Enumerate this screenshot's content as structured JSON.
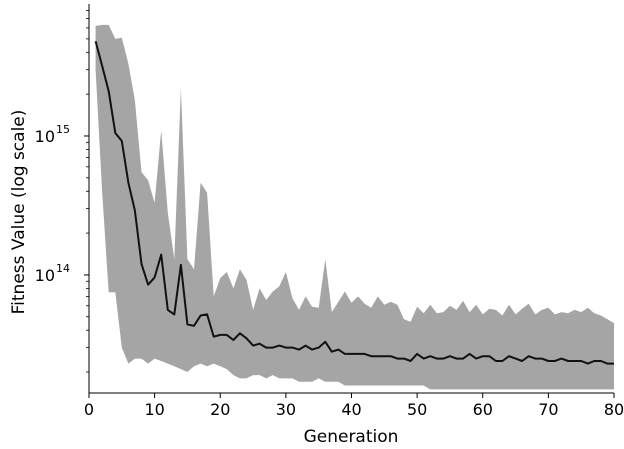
{
  "chart_data": {
    "type": "area",
    "xlabel": "Generation",
    "ylabel": "Fitness Value (log scale)",
    "xlim": [
      0,
      80
    ],
    "ylim_exponent": [
      13.15,
      15.95
    ],
    "yscale": "log",
    "xticks": [
      0,
      10,
      20,
      30,
      40,
      50,
      60,
      70,
      80
    ],
    "yticks": [
      {
        "base": "10",
        "exp": "14",
        "value": 100000000000000.0
      },
      {
        "base": "10",
        "exp": "15",
        "value": 1000000000000000.0
      }
    ],
    "grid": false,
    "colors": {
      "line": "#111111",
      "band": "#a5a5a5",
      "axis": "#000000"
    },
    "x": [
      1,
      2,
      3,
      4,
      5,
      6,
      7,
      8,
      9,
      10,
      11,
      12,
      13,
      14,
      15,
      16,
      17,
      18,
      19,
      20,
      21,
      22,
      23,
      24,
      25,
      26,
      27,
      28,
      29,
      30,
      31,
      32,
      33,
      34,
      35,
      36,
      37,
      38,
      39,
      40,
      41,
      42,
      43,
      44,
      45,
      46,
      47,
      48,
      49,
      50,
      51,
      52,
      53,
      54,
      55,
      56,
      57,
      58,
      59,
      60,
      61,
      62,
      63,
      64,
      65,
      66,
      67,
      68,
      69,
      70,
      71,
      72,
      73,
      74,
      75,
      76,
      77,
      78,
      79,
      80
    ],
    "series": [
      {
        "role": "mean",
        "values": [
          4800000000000000.0,
          3200000000000000.0,
          2100000000000000.0,
          1050000000000000.0,
          920000000000000.0,
          460000000000000.0,
          290000000000000.0,
          120000000000000.0,
          85000000000000.0,
          96000000000000.0,
          140000000000000.0,
          56000000000000.0,
          52000000000000.0,
          118000000000000.0,
          44000000000000.0,
          43000000000000.0,
          51000000000000.0,
          52000000000000.0,
          36000000000000.0,
          37000000000000.0,
          37000000000000.0,
          34000000000000.0,
          38000000000000.0,
          35000000000000.0,
          31000000000000.0,
          32000000000000.0,
          30000000000000.0,
          30000000000000.0,
          31000000000000.0,
          30000000000000.0,
          30000000000000.0,
          29000000000000.0,
          31000000000000.0,
          29000000000000.0,
          30000000000000.0,
          33000000000000.0,
          28000000000000.0,
          29000000000000.0,
          27000000000000.0,
          27000000000000.0,
          27000000000000.0,
          27000000000000.0,
          26000000000000.0,
          26000000000000.0,
          26000000000000.0,
          26000000000000.0,
          25000000000000.0,
          25000000000000.0,
          24000000000000.0,
          27000000000000.0,
          25000000000000.0,
          26000000000000.0,
          25000000000000.0,
          25000000000000.0,
          26000000000000.0,
          25000000000000.0,
          25000000000000.0,
          27000000000000.0,
          25000000000000.0,
          26000000000000.0,
          26000000000000.0,
          24000000000000.0,
          24000000000000.0,
          26000000000000.0,
          25000000000000.0,
          24000000000000.0,
          26000000000000.0,
          25000000000000.0,
          25000000000000.0,
          24000000000000.0,
          24000000000000.0,
          25000000000000.0,
          24000000000000.0,
          24000000000000.0,
          24000000000000.0,
          23000000000000.0,
          24000000000000.0,
          24000000000000.0,
          23000000000000.0,
          23000000000000.0
        ]
      },
      {
        "role": "upper",
        "values": [
          6200000000000000.0,
          6300000000000000.0,
          6300000000000000.0,
          5000000000000000.0,
          5100000000000000.0,
          3300000000000000.0,
          1800000000000000.0,
          550000000000000.0,
          480000000000000.0,
          330000000000000.0,
          1100000000000000.0,
          280000000000000.0,
          130000000000000.0,
          2200000000000000.0,
          130000000000000.0,
          110000000000000.0,
          460000000000000.0,
          390000000000000.0,
          70000000000000.0,
          95000000000000.0,
          105000000000000.0,
          80000000000000.0,
          110000000000000.0,
          92000000000000.0,
          56000000000000.0,
          80000000000000.0,
          66000000000000.0,
          76000000000000.0,
          83000000000000.0,
          105000000000000.0,
          68000000000000.0,
          56000000000000.0,
          70000000000000.0,
          59000000000000.0,
          58000000000000.0,
          130000000000000.0,
          54000000000000.0,
          64000000000000.0,
          76000000000000.0,
          63000000000000.0,
          70000000000000.0,
          62000000000000.0,
          58000000000000.0,
          70000000000000.0,
          61000000000000.0,
          64000000000000.0,
          61000000000000.0,
          48000000000000.0,
          46000000000000.0,
          59000000000000.0,
          53000000000000.0,
          61000000000000.0,
          53000000000000.0,
          54000000000000.0,
          60000000000000.0,
          56000000000000.0,
          65000000000000.0,
          54000000000000.0,
          61000000000000.0,
          52000000000000.0,
          57000000000000.0,
          56000000000000.0,
          51000000000000.0,
          61000000000000.0,
          52000000000000.0,
          57000000000000.0,
          62000000000000.0,
          52000000000000.0,
          56000000000000.0,
          58000000000000.0,
          52000000000000.0,
          54000000000000.0,
          53000000000000.0,
          56000000000000.0,
          54000000000000.0,
          58000000000000.0,
          53000000000000.0,
          51000000000000.0,
          48000000000000.0,
          45000000000000.0
        ]
      },
      {
        "role": "lower",
        "values": [
          3000000000000000.0,
          400000000000000.0,
          75000000000000.0,
          75000000000000.0,
          30000000000000.0,
          23000000000000.0,
          25000000000000.0,
          25000000000000.0,
          23000000000000.0,
          25000000000000.0,
          24000000000000.0,
          23000000000000.0,
          22000000000000.0,
          21000000000000.0,
          20000000000000.0,
          22000000000000.0,
          23000000000000.0,
          22000000000000.0,
          23000000000000.0,
          22000000000000.0,
          21000000000000.0,
          19000000000000.0,
          18000000000000.0,
          18000000000000.0,
          19000000000000.0,
          19000000000000.0,
          18000000000000.0,
          19000000000000.0,
          18000000000000.0,
          18000000000000.0,
          18000000000000.0,
          17000000000000.0,
          17000000000000.0,
          17000000000000.0,
          18000000000000.0,
          17000000000000.0,
          17000000000000.0,
          17000000000000.0,
          16000000000000.0,
          16000000000000.0,
          16000000000000.0,
          16000000000000.0,
          16000000000000.0,
          16000000000000.0,
          16000000000000.0,
          16000000000000.0,
          16000000000000.0,
          16000000000000.0,
          16000000000000.0,
          16000000000000.0,
          16000000000000.0,
          15000000000000.0,
          15000000000000.0,
          15000000000000.0,
          15000000000000.0,
          15000000000000.0,
          15000000000000.0,
          15000000000000.0,
          15000000000000.0,
          15000000000000.0,
          15000000000000.0,
          15000000000000.0,
          15000000000000.0,
          15000000000000.0,
          15000000000000.0,
          15000000000000.0,
          15000000000000.0,
          15000000000000.0,
          15000000000000.0,
          15000000000000.0,
          15000000000000.0,
          15000000000000.0,
          15000000000000.0,
          15000000000000.0,
          15000000000000.0,
          15000000000000.0,
          15000000000000.0,
          15000000000000.0,
          15000000000000.0,
          15000000000000.0
        ]
      }
    ]
  }
}
